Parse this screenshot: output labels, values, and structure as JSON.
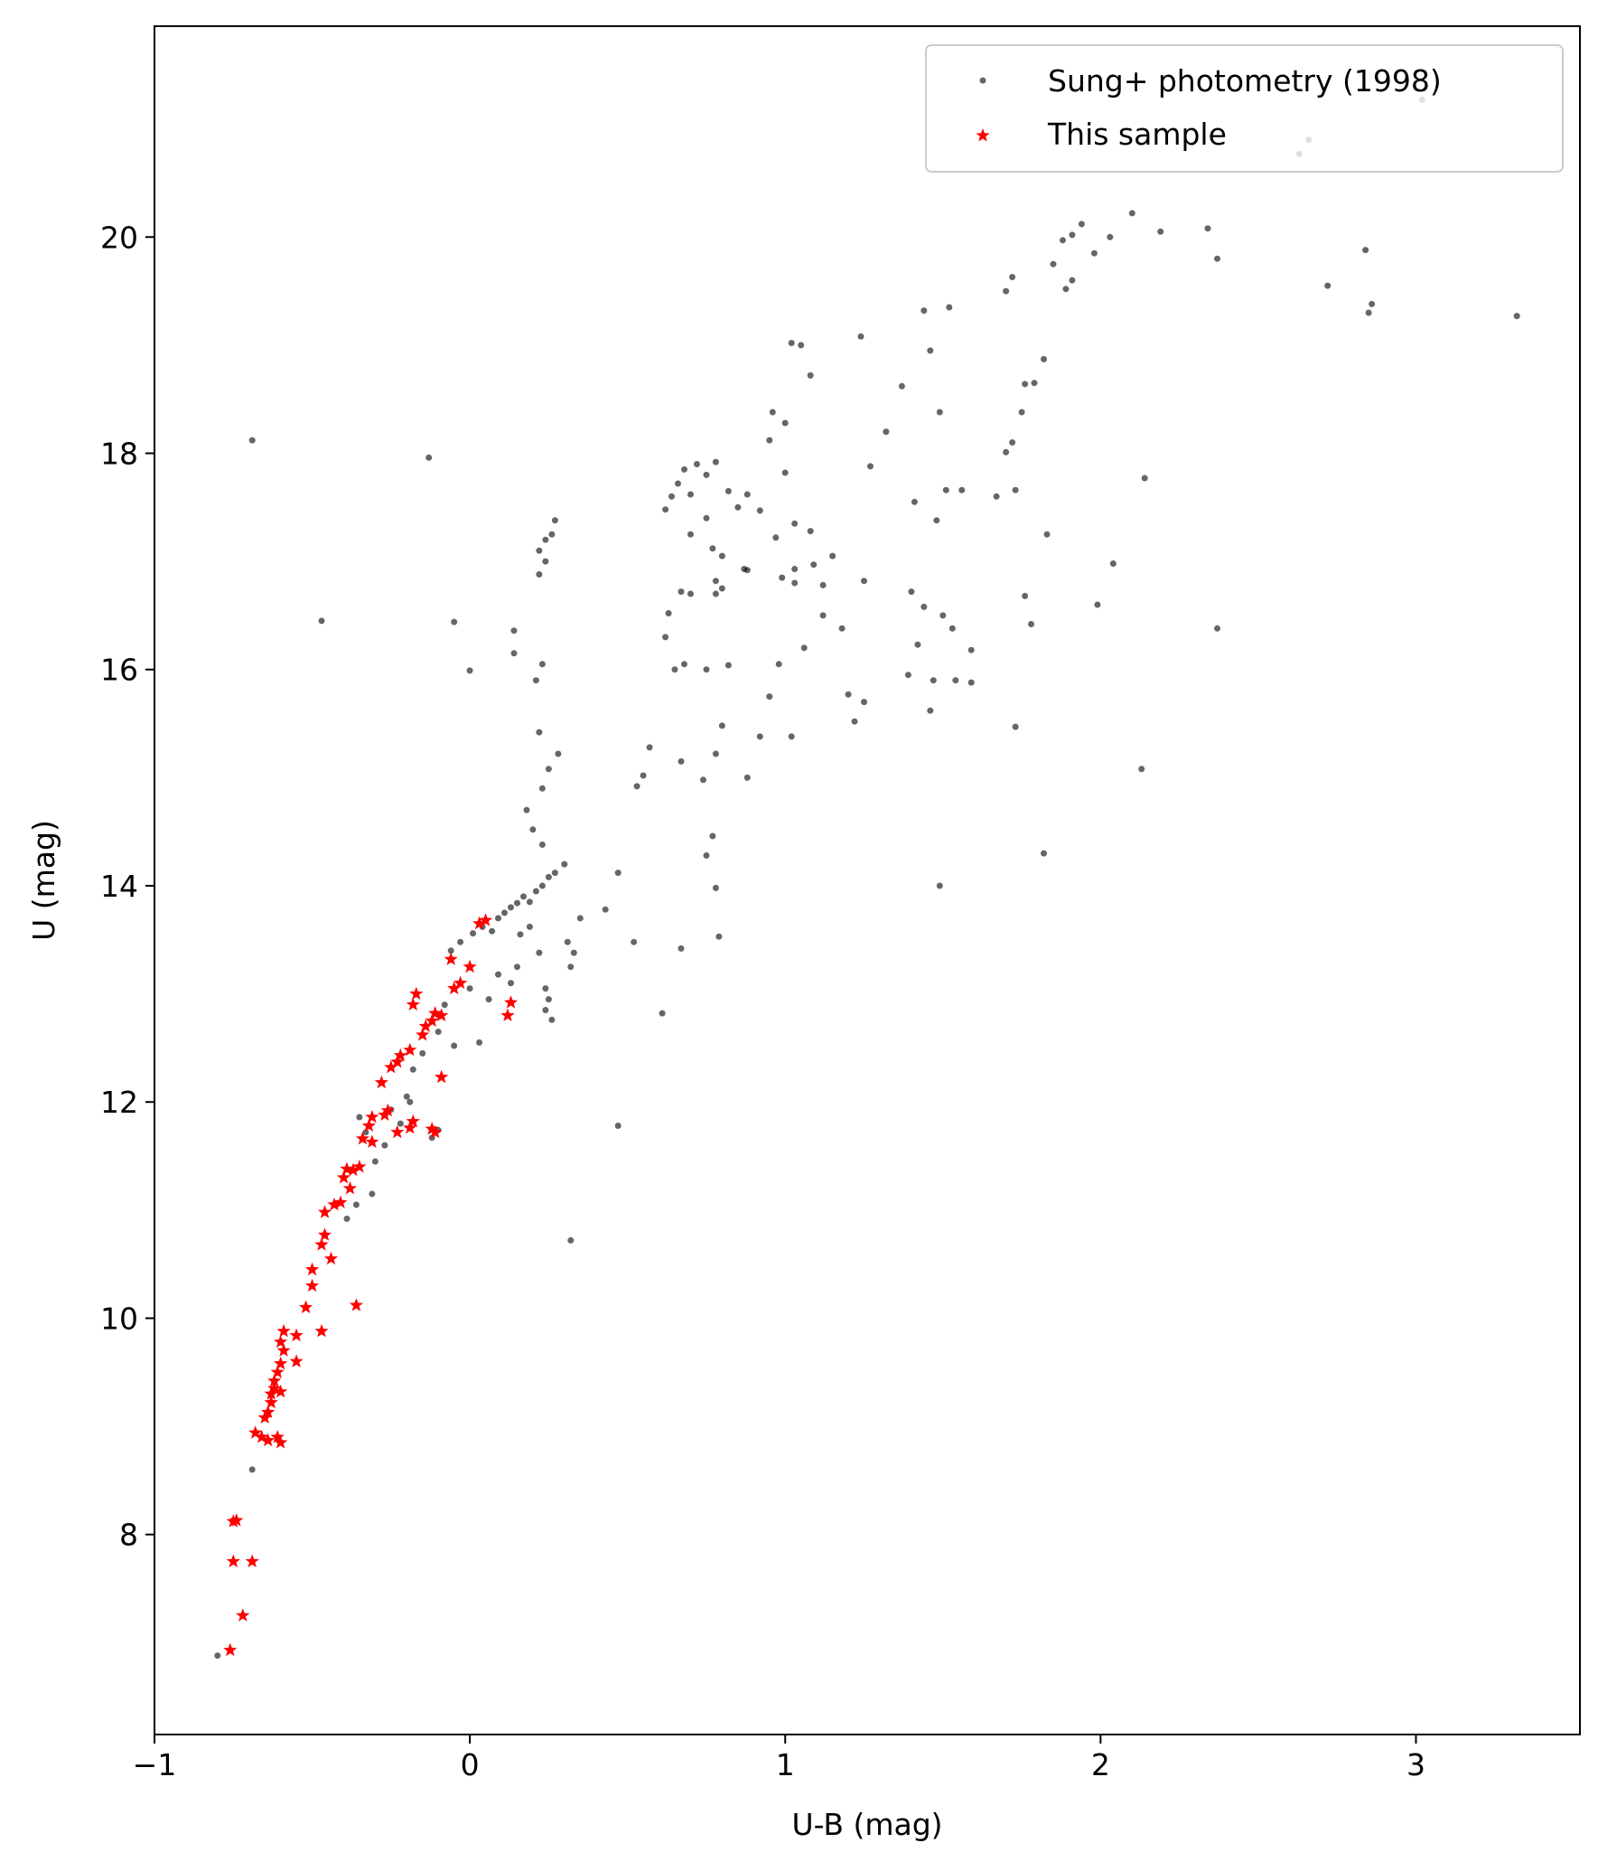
{
  "chart_data": {
    "type": "scatter",
    "title": "",
    "xlabel": "U-B (mag)",
    "ylabel": "U (mag)",
    "xlim": [
      -1.0,
      3.52
    ],
    "ylim": [
      21.95,
      6.15
    ],
    "y_inverted": true,
    "xticks": [
      -1,
      0,
      1,
      2,
      3
    ],
    "xtick_labels": [
      "−1",
      "0",
      "1",
      "2",
      "3"
    ],
    "yticks": [
      8,
      10,
      12,
      14,
      16,
      18,
      20
    ],
    "ytick_labels": [
      "8",
      "10",
      "12",
      "14",
      "16",
      "18",
      "20"
    ],
    "grid": false,
    "legend": "top-right",
    "series": [
      {
        "name": "Sung+ photometry (1998)",
        "marker": "circle",
        "color": "#000000",
        "alpha": 0.6,
        "points": [
          [
            -0.8,
            6.88
          ],
          [
            -0.69,
            8.6
          ],
          [
            -0.69,
            18.12
          ],
          [
            -0.47,
            16.45
          ],
          [
            -0.13,
            17.96
          ],
          [
            -0.05,
            16.44
          ],
          [
            0.0,
            15.99
          ],
          [
            -0.39,
            10.92
          ],
          [
            -0.36,
            11.05
          ],
          [
            -0.31,
            11.15
          ],
          [
            -0.3,
            11.45
          ],
          [
            -0.27,
            11.6
          ],
          [
            -0.33,
            11.72
          ],
          [
            -0.35,
            11.86
          ],
          [
            -0.25,
            11.93
          ],
          [
            -0.22,
            11.8
          ],
          [
            -0.19,
            12.0
          ],
          [
            -0.12,
            11.67
          ],
          [
            -0.1,
            11.74
          ],
          [
            -0.2,
            12.05
          ],
          [
            -0.18,
            12.3
          ],
          [
            -0.15,
            12.45
          ],
          [
            -0.1,
            12.65
          ],
          [
            -0.05,
            12.52
          ],
          [
            0.03,
            12.55
          ],
          [
            -0.08,
            12.9
          ],
          [
            0.0,
            13.05
          ],
          [
            0.06,
            12.95
          ],
          [
            0.09,
            13.18
          ],
          [
            -0.06,
            13.4
          ],
          [
            -0.03,
            13.48
          ],
          [
            0.01,
            13.56
          ],
          [
            0.04,
            13.62
          ],
          [
            0.07,
            13.58
          ],
          [
            0.09,
            13.7
          ],
          [
            0.11,
            13.75
          ],
          [
            0.13,
            13.8
          ],
          [
            0.15,
            13.84
          ],
          [
            0.17,
            13.9
          ],
          [
            0.19,
            13.85
          ],
          [
            0.21,
            13.95
          ],
          [
            0.23,
            14.0
          ],
          [
            0.25,
            14.08
          ],
          [
            0.27,
            14.12
          ],
          [
            0.3,
            14.2
          ],
          [
            0.16,
            13.55
          ],
          [
            0.19,
            13.62
          ],
          [
            0.22,
            13.38
          ],
          [
            0.15,
            13.25
          ],
          [
            0.13,
            13.1
          ],
          [
            0.24,
            13.05
          ],
          [
            0.25,
            12.95
          ],
          [
            0.24,
            12.85
          ],
          [
            0.26,
            12.76
          ],
          [
            0.31,
            13.48
          ],
          [
            0.33,
            13.38
          ],
          [
            0.32,
            13.25
          ],
          [
            0.35,
            13.7
          ],
          [
            0.43,
            13.78
          ],
          [
            0.47,
            14.12
          ],
          [
            0.32,
            10.72
          ],
          [
            0.47,
            11.78
          ],
          [
            0.52,
            13.48
          ],
          [
            0.61,
            12.82
          ],
          [
            0.67,
            13.42
          ],
          [
            0.79,
            13.53
          ],
          [
            0.75,
            14.28
          ],
          [
            0.77,
            14.46
          ],
          [
            0.78,
            13.98
          ],
          [
            0.74,
            14.98
          ],
          [
            0.8,
            15.48
          ],
          [
            0.88,
            15.0
          ],
          [
            0.67,
            15.15
          ],
          [
            0.78,
            15.22
          ],
          [
            0.55,
            15.02
          ],
          [
            0.57,
            15.28
          ],
          [
            0.53,
            14.92
          ],
          [
            0.23,
            14.38
          ],
          [
            0.2,
            14.52
          ],
          [
            0.18,
            14.7
          ],
          [
            0.23,
            14.9
          ],
          [
            0.25,
            15.08
          ],
          [
            0.28,
            15.22
          ],
          [
            0.22,
            15.42
          ],
          [
            0.21,
            15.9
          ],
          [
            0.23,
            16.05
          ],
          [
            0.14,
            16.15
          ],
          [
            0.14,
            16.36
          ],
          [
            0.22,
            16.88
          ],
          [
            0.24,
            17.0
          ],
          [
            0.22,
            17.1
          ],
          [
            0.24,
            17.2
          ],
          [
            0.27,
            17.38
          ],
          [
            0.26,
            17.25
          ],
          [
            0.65,
            16.0
          ],
          [
            0.68,
            16.05
          ],
          [
            0.75,
            16.0
          ],
          [
            0.82,
            16.04
          ],
          [
            0.62,
            16.3
          ],
          [
            0.63,
            16.52
          ],
          [
            0.67,
            16.72
          ],
          [
            0.7,
            16.7
          ],
          [
            0.78,
            16.7
          ],
          [
            0.8,
            16.75
          ],
          [
            0.78,
            16.82
          ],
          [
            0.87,
            16.93
          ],
          [
            0.88,
            16.92
          ],
          [
            0.8,
            17.05
          ],
          [
            0.77,
            17.12
          ],
          [
            0.7,
            17.25
          ],
          [
            0.75,
            17.4
          ],
          [
            0.85,
            17.5
          ],
          [
            0.92,
            17.47
          ],
          [
            0.97,
            17.22
          ],
          [
            1.03,
            17.35
          ],
          [
            0.88,
            17.62
          ],
          [
            0.82,
            17.65
          ],
          [
            0.7,
            17.62
          ],
          [
            0.75,
            17.8
          ],
          [
            0.78,
            17.92
          ],
          [
            0.72,
            17.9
          ],
          [
            0.68,
            17.85
          ],
          [
            0.66,
            17.72
          ],
          [
            0.64,
            17.6
          ],
          [
            0.62,
            17.48
          ],
          [
            0.92,
            15.38
          ],
          [
            0.95,
            15.75
          ],
          [
            1.02,
            15.38
          ],
          [
            0.98,
            16.05
          ],
          [
            1.06,
            16.2
          ],
          [
            0.99,
            16.85
          ],
          [
            1.03,
            16.8
          ],
          [
            1.03,
            16.93
          ],
          [
            1.09,
            16.97
          ],
          [
            1.15,
            17.05
          ],
          [
            1.12,
            16.78
          ],
          [
            1.2,
            15.77
          ],
          [
            1.22,
            15.52
          ],
          [
            1.25,
            15.7
          ],
          [
            1.18,
            16.38
          ],
          [
            1.12,
            16.5
          ],
          [
            1.25,
            16.82
          ],
          [
            1.08,
            17.28
          ],
          [
            1.0,
            17.82
          ],
          [
            0.95,
            18.12
          ],
          [
            1.0,
            18.28
          ],
          [
            0.96,
            18.38
          ],
          [
            1.08,
            18.72
          ],
          [
            1.02,
            19.02
          ],
          [
            1.05,
            19.0
          ],
          [
            1.24,
            19.08
          ],
          [
            1.27,
            17.88
          ],
          [
            1.32,
            18.2
          ],
          [
            1.37,
            18.62
          ],
          [
            1.41,
            17.55
          ],
          [
            1.44,
            16.58
          ],
          [
            1.4,
            16.72
          ],
          [
            1.39,
            15.95
          ],
          [
            1.42,
            16.23
          ],
          [
            1.47,
            15.9
          ],
          [
            1.46,
            15.62
          ],
          [
            1.49,
            14.0
          ],
          [
            1.5,
            16.5
          ],
          [
            1.53,
            16.38
          ],
          [
            1.48,
            17.38
          ],
          [
            1.51,
            17.66
          ],
          [
            1.56,
            17.66
          ],
          [
            1.54,
            15.9
          ],
          [
            1.59,
            15.88
          ],
          [
            1.59,
            16.18
          ],
          [
            1.49,
            18.38
          ],
          [
            1.46,
            18.95
          ],
          [
            1.44,
            19.32
          ],
          [
            1.52,
            19.35
          ],
          [
            1.67,
            17.6
          ],
          [
            1.7,
            18.01
          ],
          [
            1.73,
            17.66
          ],
          [
            1.72,
            18.1
          ],
          [
            1.75,
            18.38
          ],
          [
            1.76,
            18.64
          ],
          [
            1.79,
            18.65
          ],
          [
            1.82,
            18.87
          ],
          [
            1.76,
            16.68
          ],
          [
            1.78,
            16.42
          ],
          [
            1.73,
            15.47
          ],
          [
            1.83,
            17.25
          ],
          [
            1.82,
            14.3
          ],
          [
            1.7,
            19.5
          ],
          [
            1.72,
            19.63
          ],
          [
            1.85,
            19.75
          ],
          [
            1.89,
            19.52
          ],
          [
            1.91,
            19.6
          ],
          [
            1.88,
            19.97
          ],
          [
            1.91,
            20.02
          ],
          [
            1.94,
            20.12
          ],
          [
            1.98,
            19.85
          ],
          [
            2.03,
            20.0
          ],
          [
            2.1,
            20.22
          ],
          [
            2.19,
            20.05
          ],
          [
            2.34,
            20.08
          ],
          [
            2.37,
            19.8
          ],
          [
            1.99,
            16.6
          ],
          [
            2.04,
            16.98
          ],
          [
            2.13,
            15.08
          ],
          [
            2.14,
            17.77
          ],
          [
            2.37,
            16.38
          ],
          [
            2.63,
            20.77
          ],
          [
            2.66,
            20.9
          ],
          [
            2.72,
            19.55
          ],
          [
            2.84,
            19.88
          ],
          [
            2.85,
            19.3
          ],
          [
            2.86,
            19.38
          ],
          [
            3.02,
            21.27
          ],
          [
            3.32,
            19.27
          ]
        ]
      },
      {
        "name": "This sample",
        "marker": "star",
        "color": "#ff0000",
        "points": [
          [
            -0.76,
            6.93
          ],
          [
            -0.72,
            7.25
          ],
          [
            -0.75,
            7.75
          ],
          [
            -0.69,
            7.75
          ],
          [
            -0.75,
            8.12
          ],
          [
            -0.74,
            8.13
          ],
          [
            -0.68,
            8.94
          ],
          [
            -0.66,
            8.9
          ],
          [
            -0.64,
            8.87
          ],
          [
            -0.61,
            8.9
          ],
          [
            -0.6,
            8.85
          ],
          [
            -0.65,
            9.08
          ],
          [
            -0.64,
            9.13
          ],
          [
            -0.63,
            9.22
          ],
          [
            -0.63,
            9.3
          ],
          [
            -0.62,
            9.35
          ],
          [
            -0.6,
            9.32
          ],
          [
            -0.62,
            9.42
          ],
          [
            -0.61,
            9.5
          ],
          [
            -0.6,
            9.58
          ],
          [
            -0.59,
            9.7
          ],
          [
            -0.6,
            9.78
          ],
          [
            -0.59,
            9.88
          ],
          [
            -0.55,
            9.84
          ],
          [
            -0.55,
            9.6
          ],
          [
            -0.47,
            9.88
          ],
          [
            -0.52,
            10.1
          ],
          [
            -0.36,
            10.12
          ],
          [
            -0.5,
            10.3
          ],
          [
            -0.5,
            10.45
          ],
          [
            -0.44,
            10.55
          ],
          [
            -0.47,
            10.68
          ],
          [
            -0.46,
            10.77
          ],
          [
            -0.46,
            10.98
          ],
          [
            -0.43,
            11.05
          ],
          [
            -0.41,
            11.07
          ],
          [
            -0.38,
            11.2
          ],
          [
            -0.4,
            11.3
          ],
          [
            -0.39,
            11.38
          ],
          [
            -0.37,
            11.37
          ],
          [
            -0.35,
            11.4
          ],
          [
            -0.34,
            11.66
          ],
          [
            -0.31,
            11.63
          ],
          [
            -0.32,
            11.78
          ],
          [
            -0.31,
            11.86
          ],
          [
            -0.27,
            11.88
          ],
          [
            -0.26,
            11.92
          ],
          [
            -0.23,
            11.72
          ],
          [
            -0.19,
            11.76
          ],
          [
            -0.18,
            11.82
          ],
          [
            -0.12,
            11.75
          ],
          [
            -0.11,
            11.72
          ],
          [
            -0.28,
            12.18
          ],
          [
            -0.25,
            12.32
          ],
          [
            -0.23,
            12.37
          ],
          [
            -0.22,
            12.43
          ],
          [
            -0.19,
            12.48
          ],
          [
            -0.09,
            12.23
          ],
          [
            -0.15,
            12.62
          ],
          [
            -0.14,
            12.7
          ],
          [
            -0.12,
            12.75
          ],
          [
            -0.11,
            12.82
          ],
          [
            -0.09,
            12.8
          ],
          [
            -0.18,
            12.9
          ],
          [
            -0.17,
            13.0
          ],
          [
            -0.05,
            13.05
          ],
          [
            -0.03,
            13.1
          ],
          [
            0.0,
            13.25
          ],
          [
            -0.06,
            13.32
          ],
          [
            0.03,
            13.65
          ],
          [
            0.05,
            13.68
          ],
          [
            0.12,
            12.8
          ],
          [
            0.13,
            12.92
          ]
        ]
      }
    ]
  }
}
